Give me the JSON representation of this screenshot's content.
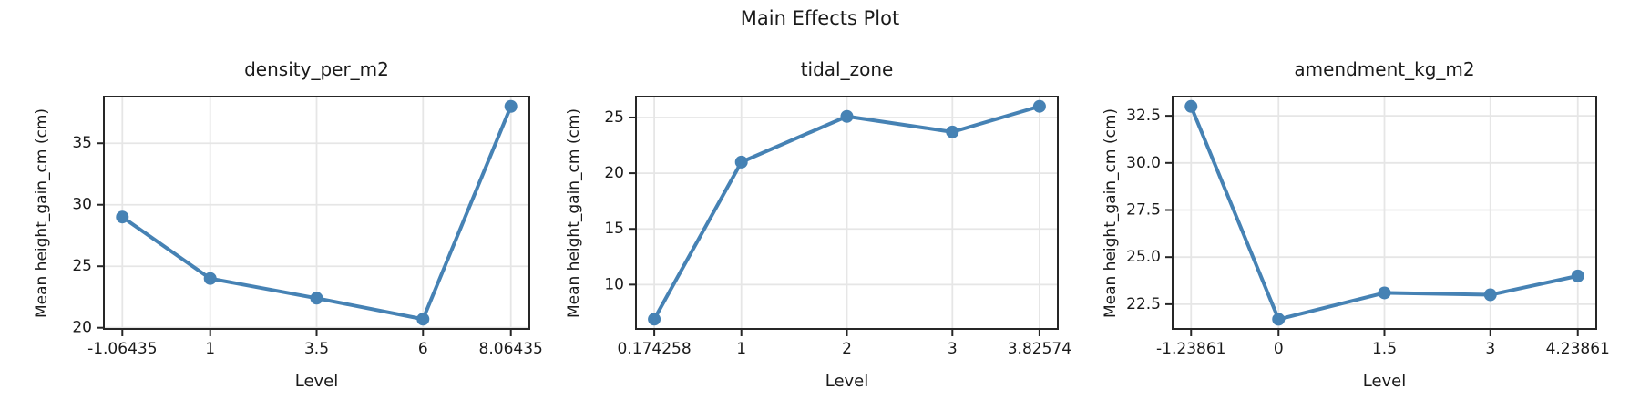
{
  "figure": {
    "suptitle": "Main Effects Plot"
  },
  "style": {
    "line_color": "#4682B4",
    "grid_color": "#e6e6e6",
    "spine_color": "#262626",
    "tick_color": "#262626",
    "text_color": "#1a1a1a",
    "background": "#ffffff"
  },
  "chart_data": [
    {
      "type": "line",
      "title": "density_per_m2",
      "xlabel": "Level",
      "ylabel": "Mean height_gain_cm (cm)",
      "x": [
        -1.06435,
        1,
        3.5,
        6,
        8.06435
      ],
      "x_tick_labels": [
        "-1.06435",
        "1",
        "3.5",
        "6",
        "8.06435"
      ],
      "y": [
        29.0,
        24.0,
        22.4,
        20.7,
        38.0
      ],
      "y_ticks": [
        20,
        25,
        30,
        35
      ],
      "y_tick_labels": [
        "20",
        "25",
        "30",
        "35"
      ],
      "xlim": [
        -1.52,
        8.52
      ],
      "ylim": [
        19.83,
        38.87
      ],
      "grid": true,
      "marker": "o",
      "legend": null
    },
    {
      "type": "line",
      "title": "tidal_zone",
      "xlabel": "Level",
      "ylabel": "Mean height_gain_cm (cm)",
      "x": [
        0.174258,
        1,
        2,
        3,
        3.82574
      ],
      "x_tick_labels": [
        "0.174258",
        "1",
        "2",
        "3",
        "3.82574"
      ],
      "y": [
        6.9,
        21.0,
        25.1,
        23.7,
        26.0
      ],
      "y_ticks": [
        10,
        15,
        20,
        25
      ],
      "y_tick_labels": [
        "10",
        "15",
        "20",
        "25"
      ],
      "xlim": [
        -0.008,
        4.008
      ],
      "ylim": [
        5.94,
        26.96
      ],
      "grid": true,
      "marker": "o",
      "legend": null
    },
    {
      "type": "line",
      "title": "amendment_kg_m2",
      "xlabel": "Level",
      "ylabel": "Mean height_gain_cm (cm)",
      "x": [
        -1.23861,
        0,
        1.5,
        3,
        4.23861
      ],
      "x_tick_labels": [
        "-1.23861",
        "0",
        "1.5",
        "3",
        "4.23861"
      ],
      "y": [
        33.0,
        21.7,
        23.1,
        23.0,
        24.0
      ],
      "y_ticks": [
        22.5,
        25.0,
        27.5,
        30.0,
        32.5
      ],
      "y_tick_labels": [
        "22.5",
        "25.0",
        "27.5",
        "30.0",
        "32.5"
      ],
      "xlim": [
        -1.513,
        4.513
      ],
      "ylim": [
        21.14,
        33.57
      ],
      "grid": true,
      "marker": "o",
      "legend": null
    }
  ]
}
